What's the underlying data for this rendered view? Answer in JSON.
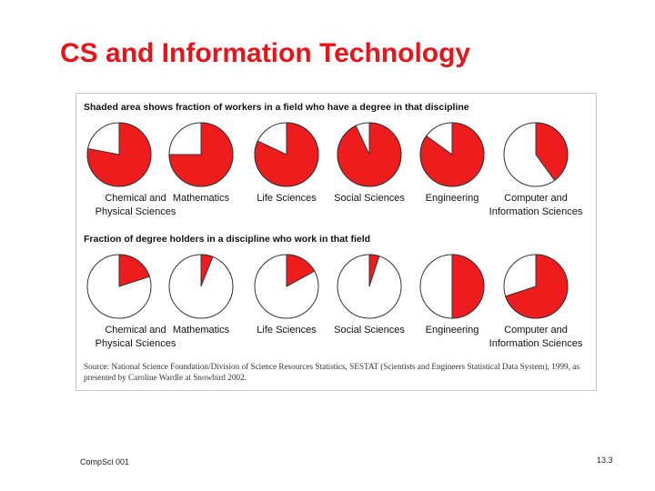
{
  "slide": {
    "title": "CS and Information Technology",
    "footer_left": "CompSci 001",
    "page_number": "13.3"
  },
  "colors": {
    "title": "#e8141a",
    "shaded": "#ee1c1c",
    "unshaded": "#ffffff",
    "outline": "#333333"
  },
  "source_note": "Source: National Science Foundation/Division of Science Resources Statistics, SESTAT (Scientists and Engineers Statistical Data System), 1999, as presented by Caroline Wardle at Snowbird 2002.",
  "chart_data": [
    {
      "type": "pie",
      "title": "Shaded area shows fraction of workers in a field who have a degree in that discipline",
      "categories": [
        "Chemical and Physical Sciences",
        "Mathematics",
        "Life Sciences",
        "Social Sciences",
        "Engineering",
        "Computer and Information Sciences"
      ],
      "label_lines": [
        [
          "Chemical and",
          "Physical Sciences"
        ],
        [
          "Mathematics"
        ],
        [
          "Life Sciences"
        ],
        [
          "Social Sciences"
        ],
        [
          "Engineering"
        ],
        [
          "Computer and",
          "Information Sciences"
        ]
      ],
      "values": [
        0.78,
        0.75,
        0.82,
        0.93,
        0.85,
        0.4
      ]
    },
    {
      "type": "pie",
      "title": "Fraction of degree holders in a discipline who work in that field",
      "categories": [
        "Chemical and Physical Sciences",
        "Mathematics",
        "Life Sciences",
        "Social Sciences",
        "Engineering",
        "Computer and Information Sciences"
      ],
      "label_lines": [
        [
          "Chemical and",
          "Physical Sciences"
        ],
        [
          "Mathematics"
        ],
        [
          "Life Sciences"
        ],
        [
          "Social Sciences"
        ],
        [
          "Engineering"
        ],
        [
          "Computer and",
          "Information Sciences"
        ]
      ],
      "values": [
        0.2,
        0.06,
        0.17,
        0.05,
        0.5,
        0.7
      ]
    }
  ]
}
